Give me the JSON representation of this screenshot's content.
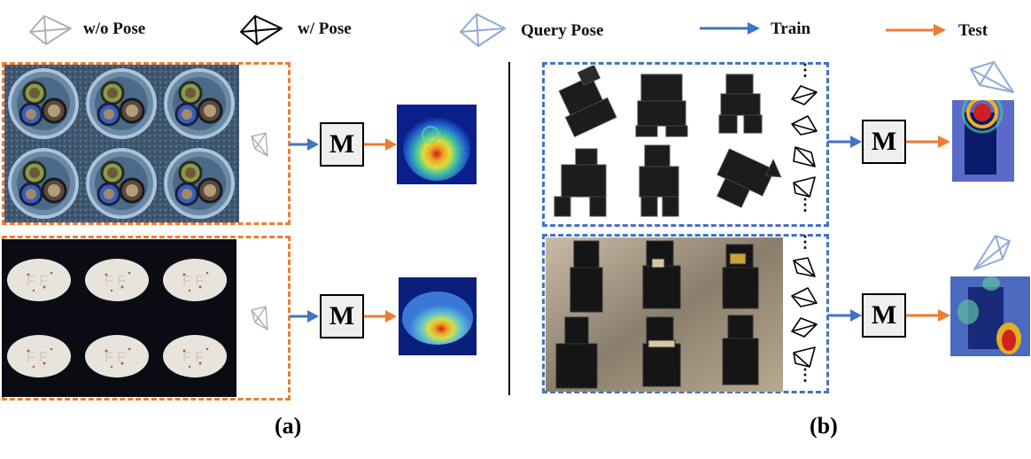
{
  "legend": {
    "wo_pose": "w/o Pose",
    "w_pose": "w/ Pose",
    "query_pose": "Query Pose",
    "train": "Train",
    "test": "Test"
  },
  "model_label": "M",
  "captions": {
    "a": "(a)",
    "b": "(b)"
  },
  "ellipsis": "⋮",
  "colors": {
    "train_arrow": "#4472c4",
    "test_arrow": "#ed7d31",
    "wo_pose_icon": "#b0b0b0",
    "w_pose_icon": "#000000",
    "query_pose_icon": "#8eaadb"
  }
}
